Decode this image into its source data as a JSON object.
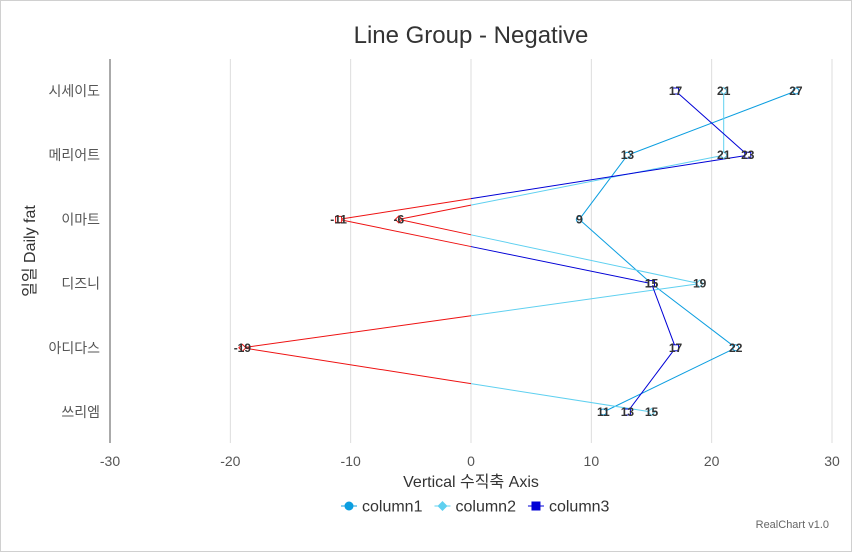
{
  "chart_data": {
    "type": "line",
    "orientation": "horizontal",
    "title": "Line Group - Negative",
    "xlabel": "Vertical 수직축 Axis",
    "ylabel": "일일 Daily fat",
    "categories": [
      "시세이도",
      "메리어트",
      "이마트",
      "디즈니",
      "아디다스",
      "쓰리엠"
    ],
    "xlim": [
      -30,
      30
    ],
    "xticks": [
      -30,
      -20,
      -10,
      0,
      10,
      20,
      30
    ],
    "grid": true,
    "legend_position": "bottom",
    "negative_color": "#ee1111",
    "series": [
      {
        "name": "column1",
        "color": "#0b9ee0",
        "marker": "circle",
        "values": [
          27,
          13,
          9,
          15,
          22,
          11
        ]
      },
      {
        "name": "column2",
        "color": "#5fd0f0",
        "marker": "diamond",
        "values": [
          21,
          21,
          -6,
          19,
          -19,
          15
        ]
      },
      {
        "name": "column3",
        "color": "#0000d6",
        "marker": "square",
        "values": [
          17,
          23,
          -11,
          15,
          17,
          13
        ]
      }
    ]
  },
  "credit": "RealChart v1.0"
}
